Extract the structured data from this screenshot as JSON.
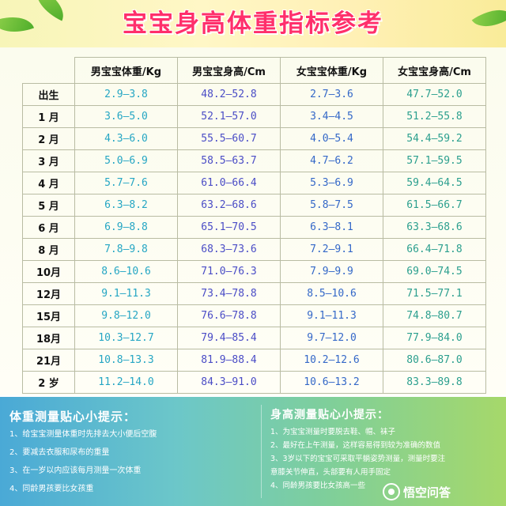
{
  "title": "宝宝身高体重指标参考",
  "table": {
    "headers": [
      "男宝宝体重/Kg",
      "男宝宝身高/Cm",
      "女宝宝体重/Kg",
      "女宝宝身高/Cm"
    ],
    "rows": [
      {
        "age": "出生",
        "bw": "2.9—3.8",
        "bh": "48.2—52.8",
        "gw": "2.7—3.6",
        "gh": "47.7—52.0"
      },
      {
        "age": "1 月",
        "bw": "3.6—5.0",
        "bh": "52.1—57.0",
        "gw": "3.4—4.5",
        "gh": "51.2—55.8"
      },
      {
        "age": "2 月",
        "bw": "4.3—6.0",
        "bh": "55.5—60.7",
        "gw": "4.0—5.4",
        "gh": "54.4—59.2"
      },
      {
        "age": "3 月",
        "bw": "5.0—6.9",
        "bh": "58.5—63.7",
        "gw": "4.7—6.2",
        "gh": "57.1—59.5"
      },
      {
        "age": "4 月",
        "bw": "5.7—7.6",
        "bh": "61.0—66.4",
        "gw": "5.3—6.9",
        "gh": "59.4—64.5"
      },
      {
        "age": "5 月",
        "bw": "6.3—8.2",
        "bh": "63.2—68.6",
        "gw": "5.8—7.5",
        "gh": "61.5—66.7"
      },
      {
        "age": "6 月",
        "bw": "6.9—8.8",
        "bh": "65.1—70.5",
        "gw": "6.3—8.1",
        "gh": "63.3—68.6"
      },
      {
        "age": "8 月",
        "bw": "7.8—9.8",
        "bh": "68.3—73.6",
        "gw": "7.2—9.1",
        "gh": "66.4—71.8"
      },
      {
        "age": "10月",
        "bw": "8.6—10.6",
        "bh": "71.0—76.3",
        "gw": "7.9—9.9",
        "gh": "69.0—74.5"
      },
      {
        "age": "12月",
        "bw": "9.1—11.3",
        "bh": "73.4—78.8",
        "gw": "8.5—10.6",
        "gh": "71.5—77.1"
      },
      {
        "age": "15月",
        "bw": "9.8—12.0",
        "bh": "76.6—78.8",
        "gw": "9.1—11.3",
        "gh": "74.8—80.7"
      },
      {
        "age": "18月",
        "bw": "10.3—12.7",
        "bh": "79.4—85.4",
        "gw": "9.7—12.0",
        "gh": "77.9—84.0"
      },
      {
        "age": "21月",
        "bw": "10.8—13.3",
        "bh": "81.9—88.4",
        "gw": "10.2—12.6",
        "gh": "80.6—87.0"
      },
      {
        "age": "2 岁",
        "bw": "11.2—14.0",
        "bh": "84.3—91.0",
        "gw": "10.6—13.2",
        "gh": "83.3—89.8"
      }
    ]
  },
  "tips_left": {
    "title": "体重测量贴心小提示：",
    "items": [
      "1、给宝宝测量体重时先排去大小便后空腹",
      "2、要减去衣服和尿布的重量",
      "3、在一岁以内应该每月测量一次体重",
      "4、同龄男孩要比女孩重"
    ]
  },
  "tips_right": {
    "title": "身高测量贴心小提示：",
    "items": [
      "1、为宝宝测量时要脱去鞋、帽、袜子",
      "2、最好在上午测量，这样容易得到较为准确的数值",
      "3、3岁以下的宝宝可采取平躺姿势测量，测量时要注",
      "意膝关节伸直，头部要有人用手固定",
      "4、同龄男孩要比女孩高一些"
    ]
  },
  "watermark": "悟空问答",
  "colors": {
    "title": "#ff2f6b",
    "boy_weight": "#25a6c4",
    "boy_height": "#4a4cc6",
    "girl_weight": "#3468c8",
    "girl_height": "#2b9f8e"
  }
}
